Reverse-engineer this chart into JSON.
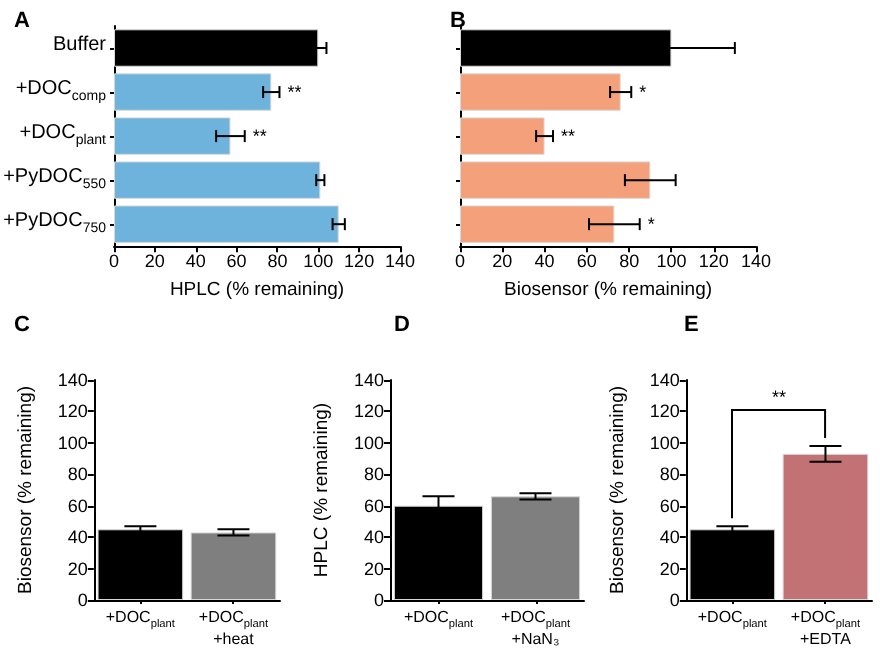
{
  "chart_data": [
    {
      "type": "bar",
      "title": "A",
      "orientation": "horizontal",
      "categories": [
        "Buffer",
        "+DOC$_{comp}$",
        "+DOC$_{plant}$",
        "+PyDOC$_{550}$",
        "+PyDOC$_{750}$"
      ],
      "values": [
        100,
        77,
        57,
        101,
        110
      ],
      "colors": [
        "#000000",
        "#6db3dc",
        "#6db3dc",
        "#6db3dc",
        "#6db3dc"
      ],
      "errors": [
        4,
        4,
        7,
        2,
        3
      ],
      "xlabel": "HPLC (% remaining)",
      "xlim": [
        0,
        140
      ],
      "xticks": [
        0,
        20,
        40,
        60,
        80,
        100,
        120,
        140
      ],
      "grid": false,
      "value_labels": [
        null,
        "**",
        "**",
        null,
        null
      ]
    },
    {
      "type": "bar",
      "title": "B",
      "orientation": "horizontal",
      "categories": [
        null,
        null,
        null,
        null,
        null
      ],
      "values": [
        100,
        76,
        40,
        90,
        73
      ],
      "colors": [
        "#000000",
        "#f4a07a",
        "#f4a07a",
        "#f4a07a",
        "#f4a07a"
      ],
      "errors": [
        30,
        5,
        4,
        12,
        12
      ],
      "xlabel": "Biosensor (% remaining)",
      "xlim": [
        0,
        140
      ],
      "xticks": [
        0,
        20,
        40,
        60,
        80,
        100,
        120,
        140
      ],
      "grid": false,
      "value_labels": [
        null,
        "*",
        "**",
        null,
        "*"
      ]
    },
    {
      "type": "bar",
      "title": "C",
      "categories": [
        "+DOC$_{plant}$",
        "+DOC$_{plant}$\n+heat"
      ],
      "values": [
        45,
        43
      ],
      "colors": [
        "#000000",
        "#7f7f7f"
      ],
      "errors": [
        2,
        2
      ],
      "ylabel": "Biosensor (% remaining)",
      "ylim": [
        0,
        140
      ],
      "yticks": [
        0,
        20,
        40,
        60,
        80,
        100,
        120,
        140
      ],
      "grid": false
    },
    {
      "type": "bar",
      "title": "D",
      "categories": [
        "+DOC$_{plant}$",
        "+DOC$_{plant}$\n+NaN₃"
      ],
      "values": [
        60,
        66
      ],
      "colors": [
        "#000000",
        "#7f7f7f"
      ],
      "errors": [
        6,
        2
      ],
      "ylabel": "HPLC (% remaining)",
      "ylim": [
        0,
        140
      ],
      "yticks": [
        0,
        20,
        40,
        60,
        80,
        100,
        120,
        140
      ],
      "grid": false
    },
    {
      "type": "bar",
      "title": "E",
      "categories": [
        "+DOC$_{plant}$",
        "+DOC$_{plant}$\n+EDTA"
      ],
      "values": [
        45,
        93
      ],
      "colors": [
        "#000000",
        "#c27174"
      ],
      "errors": [
        2,
        5
      ],
      "ylabel": "Biosensor (% remaining)",
      "ylim": [
        0,
        140
      ],
      "yticks": [
        0,
        20,
        40,
        60,
        80,
        100,
        120,
        140
      ],
      "grid": false,
      "annotations": [
        "**"
      ]
    }
  ]
}
